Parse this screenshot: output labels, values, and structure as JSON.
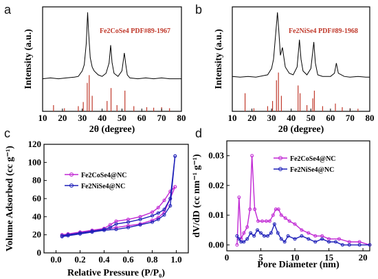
{
  "figure": {
    "panel_letters": [
      "a",
      "b",
      "c",
      "d"
    ]
  },
  "chart_data": [
    {
      "panel": "a",
      "type": "line",
      "xlabel": "2θ (degree)",
      "ylabel": "Intensity (a.u.)",
      "xlim": [
        10,
        80
      ],
      "x_ticks": [
        10,
        20,
        30,
        40,
        50,
        60,
        70,
        80
      ],
      "reference_label": "Fe2CoSe4 PDF#89-1967",
      "reference_color": "#c0392b",
      "pattern_color": "#000000",
      "series": [
        {
          "x": [
            10,
            14,
            18,
            22,
            26,
            28,
            30,
            31,
            32,
            32.7,
            33.2,
            34,
            35,
            36,
            38,
            40,
            42,
            43.5,
            44.3,
            45,
            46,
            48,
            50,
            51.2,
            51.9,
            52.7,
            54,
            58,
            62,
            66,
            70,
            74,
            78,
            80
          ],
          "y": [
            0.15,
            0.16,
            0.15,
            0.16,
            0.17,
            0.18,
            0.25,
            0.33,
            0.6,
            1.0,
            0.75,
            0.42,
            0.3,
            0.25,
            0.2,
            0.18,
            0.22,
            0.35,
            0.58,
            0.36,
            0.22,
            0.18,
            0.25,
            0.48,
            0.34,
            0.2,
            0.16,
            0.15,
            0.16,
            0.15,
            0.16,
            0.15,
            0.15,
            0.15
          ]
        }
      ],
      "reference_peaks": [
        {
          "x": 15.5,
          "h": 0.12
        },
        {
          "x": 21,
          "h": 0.06
        },
        {
          "x": 28,
          "h": 0.1
        },
        {
          "x": 30.5,
          "h": 0.18
        },
        {
          "x": 32.5,
          "h": 0.55
        },
        {
          "x": 33.5,
          "h": 0.7
        },
        {
          "x": 35,
          "h": 0.3
        },
        {
          "x": 42.5,
          "h": 0.2
        },
        {
          "x": 44.5,
          "h": 0.45
        },
        {
          "x": 47.5,
          "h": 0.12
        },
        {
          "x": 51.5,
          "h": 0.4
        },
        {
          "x": 56,
          "h": 0.1
        },
        {
          "x": 62.5,
          "h": 0.08
        },
        {
          "x": 66,
          "h": 0.07
        },
        {
          "x": 70,
          "h": 0.08
        },
        {
          "x": 74,
          "h": 0.06
        }
      ]
    },
    {
      "panel": "b",
      "type": "line",
      "xlabel": "2θ (degree)",
      "ylabel": "Intensity (a.u.)",
      "xlim": [
        10,
        80
      ],
      "x_ticks": [
        10,
        20,
        30,
        40,
        50,
        60,
        70,
        80
      ],
      "reference_label": "Fe2NiSe4 PDF#89-1968",
      "reference_color": "#c0392b",
      "pattern_color": "#000000",
      "series": [
        {
          "x": [
            10,
            14,
            18,
            22,
            26,
            28,
            30,
            31,
            32,
            33,
            33.6,
            34.5,
            35.5,
            37,
            39,
            41,
            43,
            44.2,
            45,
            46,
            48,
            50,
            51.5,
            52.3,
            53.5,
            56,
            60,
            62,
            63,
            64,
            67,
            70,
            74,
            78,
            80
          ],
          "y": [
            0.18,
            0.17,
            0.18,
            0.17,
            0.19,
            0.2,
            0.28,
            0.4,
            0.7,
            1.0,
            0.8,
            0.45,
            0.55,
            0.3,
            0.22,
            0.2,
            0.3,
            0.65,
            0.4,
            0.25,
            0.2,
            0.28,
            0.62,
            0.35,
            0.2,
            0.18,
            0.18,
            0.22,
            0.35,
            0.22,
            0.18,
            0.17,
            0.18,
            0.17,
            0.17
          ]
        }
      ],
      "reference_peaks": [
        {
          "x": 16.5,
          "h": 0.35
        },
        {
          "x": 21,
          "h": 0.06
        },
        {
          "x": 28,
          "h": 0.1
        },
        {
          "x": 30.5,
          "h": 0.2
        },
        {
          "x": 32.5,
          "h": 0.6
        },
        {
          "x": 33.5,
          "h": 0.75
        },
        {
          "x": 35,
          "h": 0.3
        },
        {
          "x": 43.5,
          "h": 0.5
        },
        {
          "x": 44.5,
          "h": 0.35
        },
        {
          "x": 48,
          "h": 0.12
        },
        {
          "x": 51,
          "h": 0.25
        },
        {
          "x": 51.8,
          "h": 0.4
        },
        {
          "x": 56,
          "h": 0.1
        },
        {
          "x": 62.5,
          "h": 0.15
        },
        {
          "x": 66,
          "h": 0.08
        },
        {
          "x": 70,
          "h": 0.06
        },
        {
          "x": 74,
          "h": 0.05
        }
      ]
    },
    {
      "panel": "c",
      "type": "line",
      "xlabel": "Relative Pressure (P/P₀)",
      "ylabel": "Volume Adsorbed (cc g⁻¹)",
      "xlim": [
        -0.1,
        1.1
      ],
      "ylim": [
        0,
        120
      ],
      "x_ticks": [
        0.0,
        0.2,
        0.4,
        0.6,
        0.8,
        1.0
      ],
      "y_ticks": [
        0,
        20,
        40,
        60,
        80,
        100,
        120
      ],
      "legend_placement": "top-left",
      "series": [
        {
          "name": "Fe2CoSe4@NC",
          "color": "#c026d3",
          "adsorption": {
            "x": [
              0.05,
              0.1,
              0.2,
              0.3,
              0.4,
              0.5,
              0.6,
              0.7,
              0.8,
              0.85,
              0.9,
              0.95,
              0.99
            ],
            "y": [
              19,
              20,
              22,
              24,
              26,
              28,
              30,
              32,
              36,
              39,
              45,
              60,
              73
            ]
          },
          "desorption": {
            "x": [
              0.99,
              0.95,
              0.9,
              0.85,
              0.8,
              0.7,
              0.6,
              0.5,
              0.45,
              0.4,
              0.3,
              0.2,
              0.1,
              0.05
            ],
            "y": [
              73,
              68,
              58,
              50,
              45,
              40,
              37,
              35,
              31,
              27,
              25,
              23,
              21,
              20
            ]
          }
        },
        {
          "name": "Fe2NiSe4@NC",
          "color": "#1d1fb8",
          "adsorption": {
            "x": [
              0.05,
              0.1,
              0.2,
              0.3,
              0.4,
              0.5,
              0.6,
              0.7,
              0.8,
              0.85,
              0.9,
              0.95,
              0.99
            ],
            "y": [
              18,
              19,
              21,
              23,
              25,
              26,
              28,
              31,
              34,
              37,
              42,
              52,
              107
            ]
          },
          "desorption": {
            "x": [
              0.99,
              0.95,
              0.9,
              0.85,
              0.8,
              0.7,
              0.6,
              0.5,
              0.45,
              0.4,
              0.3,
              0.2,
              0.1,
              0.05
            ],
            "y": [
              107,
              60,
              48,
              44,
              41,
              37,
              34,
              32,
              28,
              26,
              24,
              22,
              20,
              19
            ]
          }
        }
      ]
    },
    {
      "panel": "d",
      "type": "line",
      "xlabel": "Pore Diameter (nm)",
      "ylabel": "dV/dD (cc nm⁻¹ g⁻¹)",
      "xlim": [
        0,
        21
      ],
      "ylim": [
        -0.002,
        0.035
      ],
      "x_ticks": [
        0,
        5,
        10,
        15,
        20
      ],
      "y_ticks": [
        0.0,
        0.01,
        0.02,
        0.03
      ],
      "y_tick_labels": [
        "0.00",
        "0.01",
        "0.02",
        "0.03"
      ],
      "legend_placement": "top-right",
      "series": [
        {
          "name": "Fe2CoSe4@NC",
          "color": "#c026d3",
          "x": [
            1.5,
            1.8,
            2.1,
            2.5,
            3.0,
            3.4,
            3.7,
            4.1,
            4.6,
            5.2,
            5.8,
            6.3,
            6.8,
            7.2,
            7.6,
            8.0,
            8.6,
            9.2,
            10.0,
            11.0,
            12.0,
            13.0,
            14.0,
            15.0,
            16.5,
            18.0,
            19.5,
            21.0
          ],
          "y": [
            0.0,
            0.016,
            0.002,
            0.004,
            0.006,
            0.012,
            0.03,
            0.012,
            0.008,
            0.008,
            0.008,
            0.008,
            0.01,
            0.012,
            0.012,
            0.01,
            0.009,
            0.008,
            0.007,
            0.005,
            0.004,
            0.003,
            0.003,
            0.002,
            0.002,
            0.001,
            0.001,
            0.0
          ]
        },
        {
          "name": "Fe2NiSe4@NC",
          "color": "#1d1fb8",
          "x": [
            1.5,
            1.8,
            2.1,
            2.5,
            3.0,
            3.5,
            4.0,
            4.5,
            5.0,
            5.5,
            6.0,
            6.5,
            7.0,
            7.5,
            8.0,
            8.5,
            9.0,
            10.0,
            11.0,
            12.0,
            13.0,
            14.0,
            15.0,
            16.0,
            17.0,
            18.0,
            19.5,
            21.0
          ],
          "y": [
            0.003,
            0.002,
            0.001,
            0.001,
            0.002,
            0.004,
            0.003,
            0.005,
            0.004,
            0.003,
            0.003,
            0.004,
            0.007,
            0.004,
            0.002,
            0.001,
            0.003,
            0.002,
            0.003,
            0.002,
            0.001,
            0.002,
            0.001,
            0.001,
            0.0,
            0.0,
            0.0,
            0.0
          ]
        }
      ]
    }
  ]
}
